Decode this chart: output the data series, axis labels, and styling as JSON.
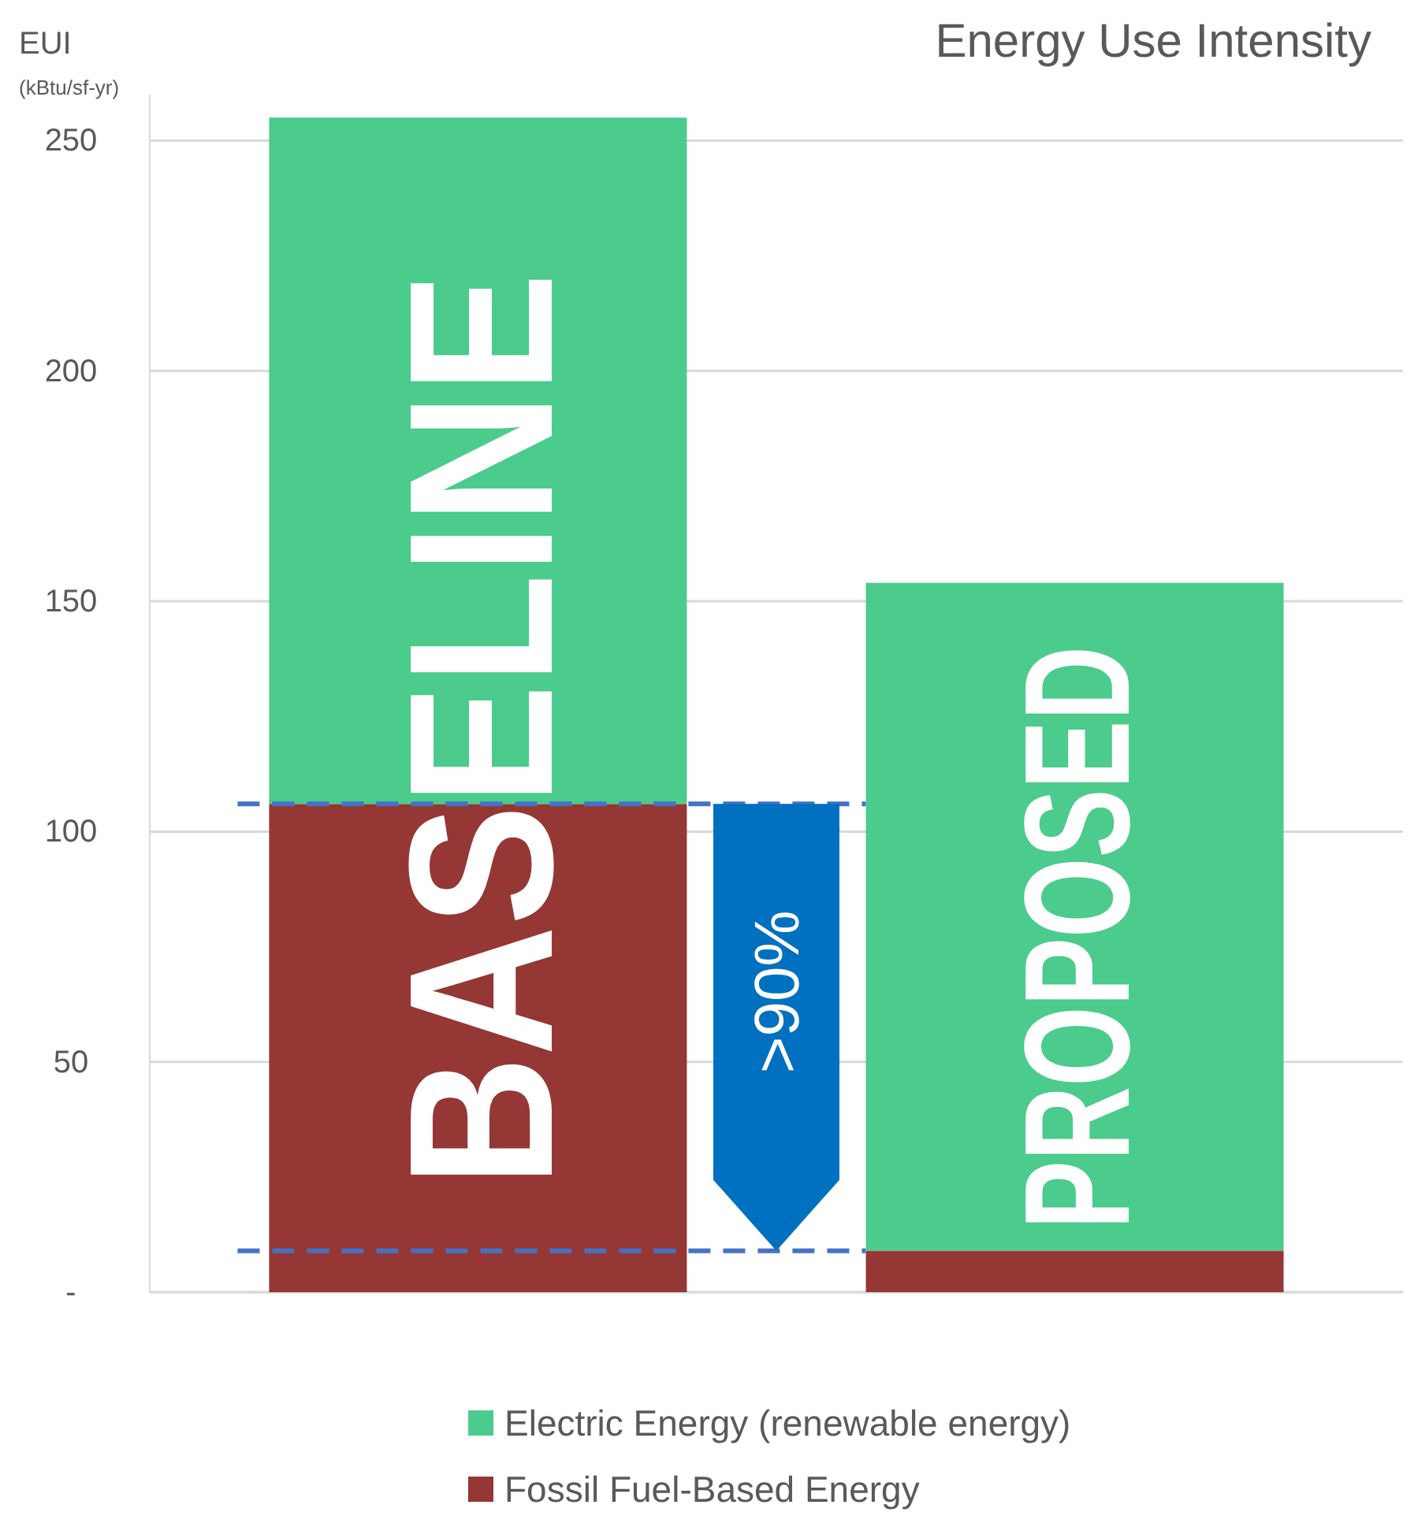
{
  "chart_data": {
    "type": "bar",
    "title": "Energy Use Intensity",
    "ylabel": "EUI",
    "categories": [
      null,
      null
    ],
    "stacked": true,
    "series": [
      {
        "name": "Fossil Fuel-Based Energy",
        "color": "#953735",
        "values": [
          106,
          9
        ]
      },
      {
        "name": "Electric Energy (renewable energy)",
        "color": "#4bcb8c",
        "values": [
          149,
          145
        ]
      }
    ],
    "ylim": [
      0,
      260
    ],
    "yticks": [
      {
        "value": 0,
        "label": "-"
      },
      50,
      100,
      150,
      200,
      250
    ],
    "grid": "y",
    "legend": "bottom",
    "ref_lines": [
      {
        "axis": "y",
        "value": 106,
        "color": "#4472c4",
        "line_style": "dashed"
      },
      {
        "axis": "y",
        "value": 9,
        "color": "#4472c4",
        "line_style": "dashed"
      }
    ],
    "annotations": [
      "(kBtu/sf-yr)",
      "BASELINE",
      ">90%",
      "PROPOSED"
    ]
  }
}
